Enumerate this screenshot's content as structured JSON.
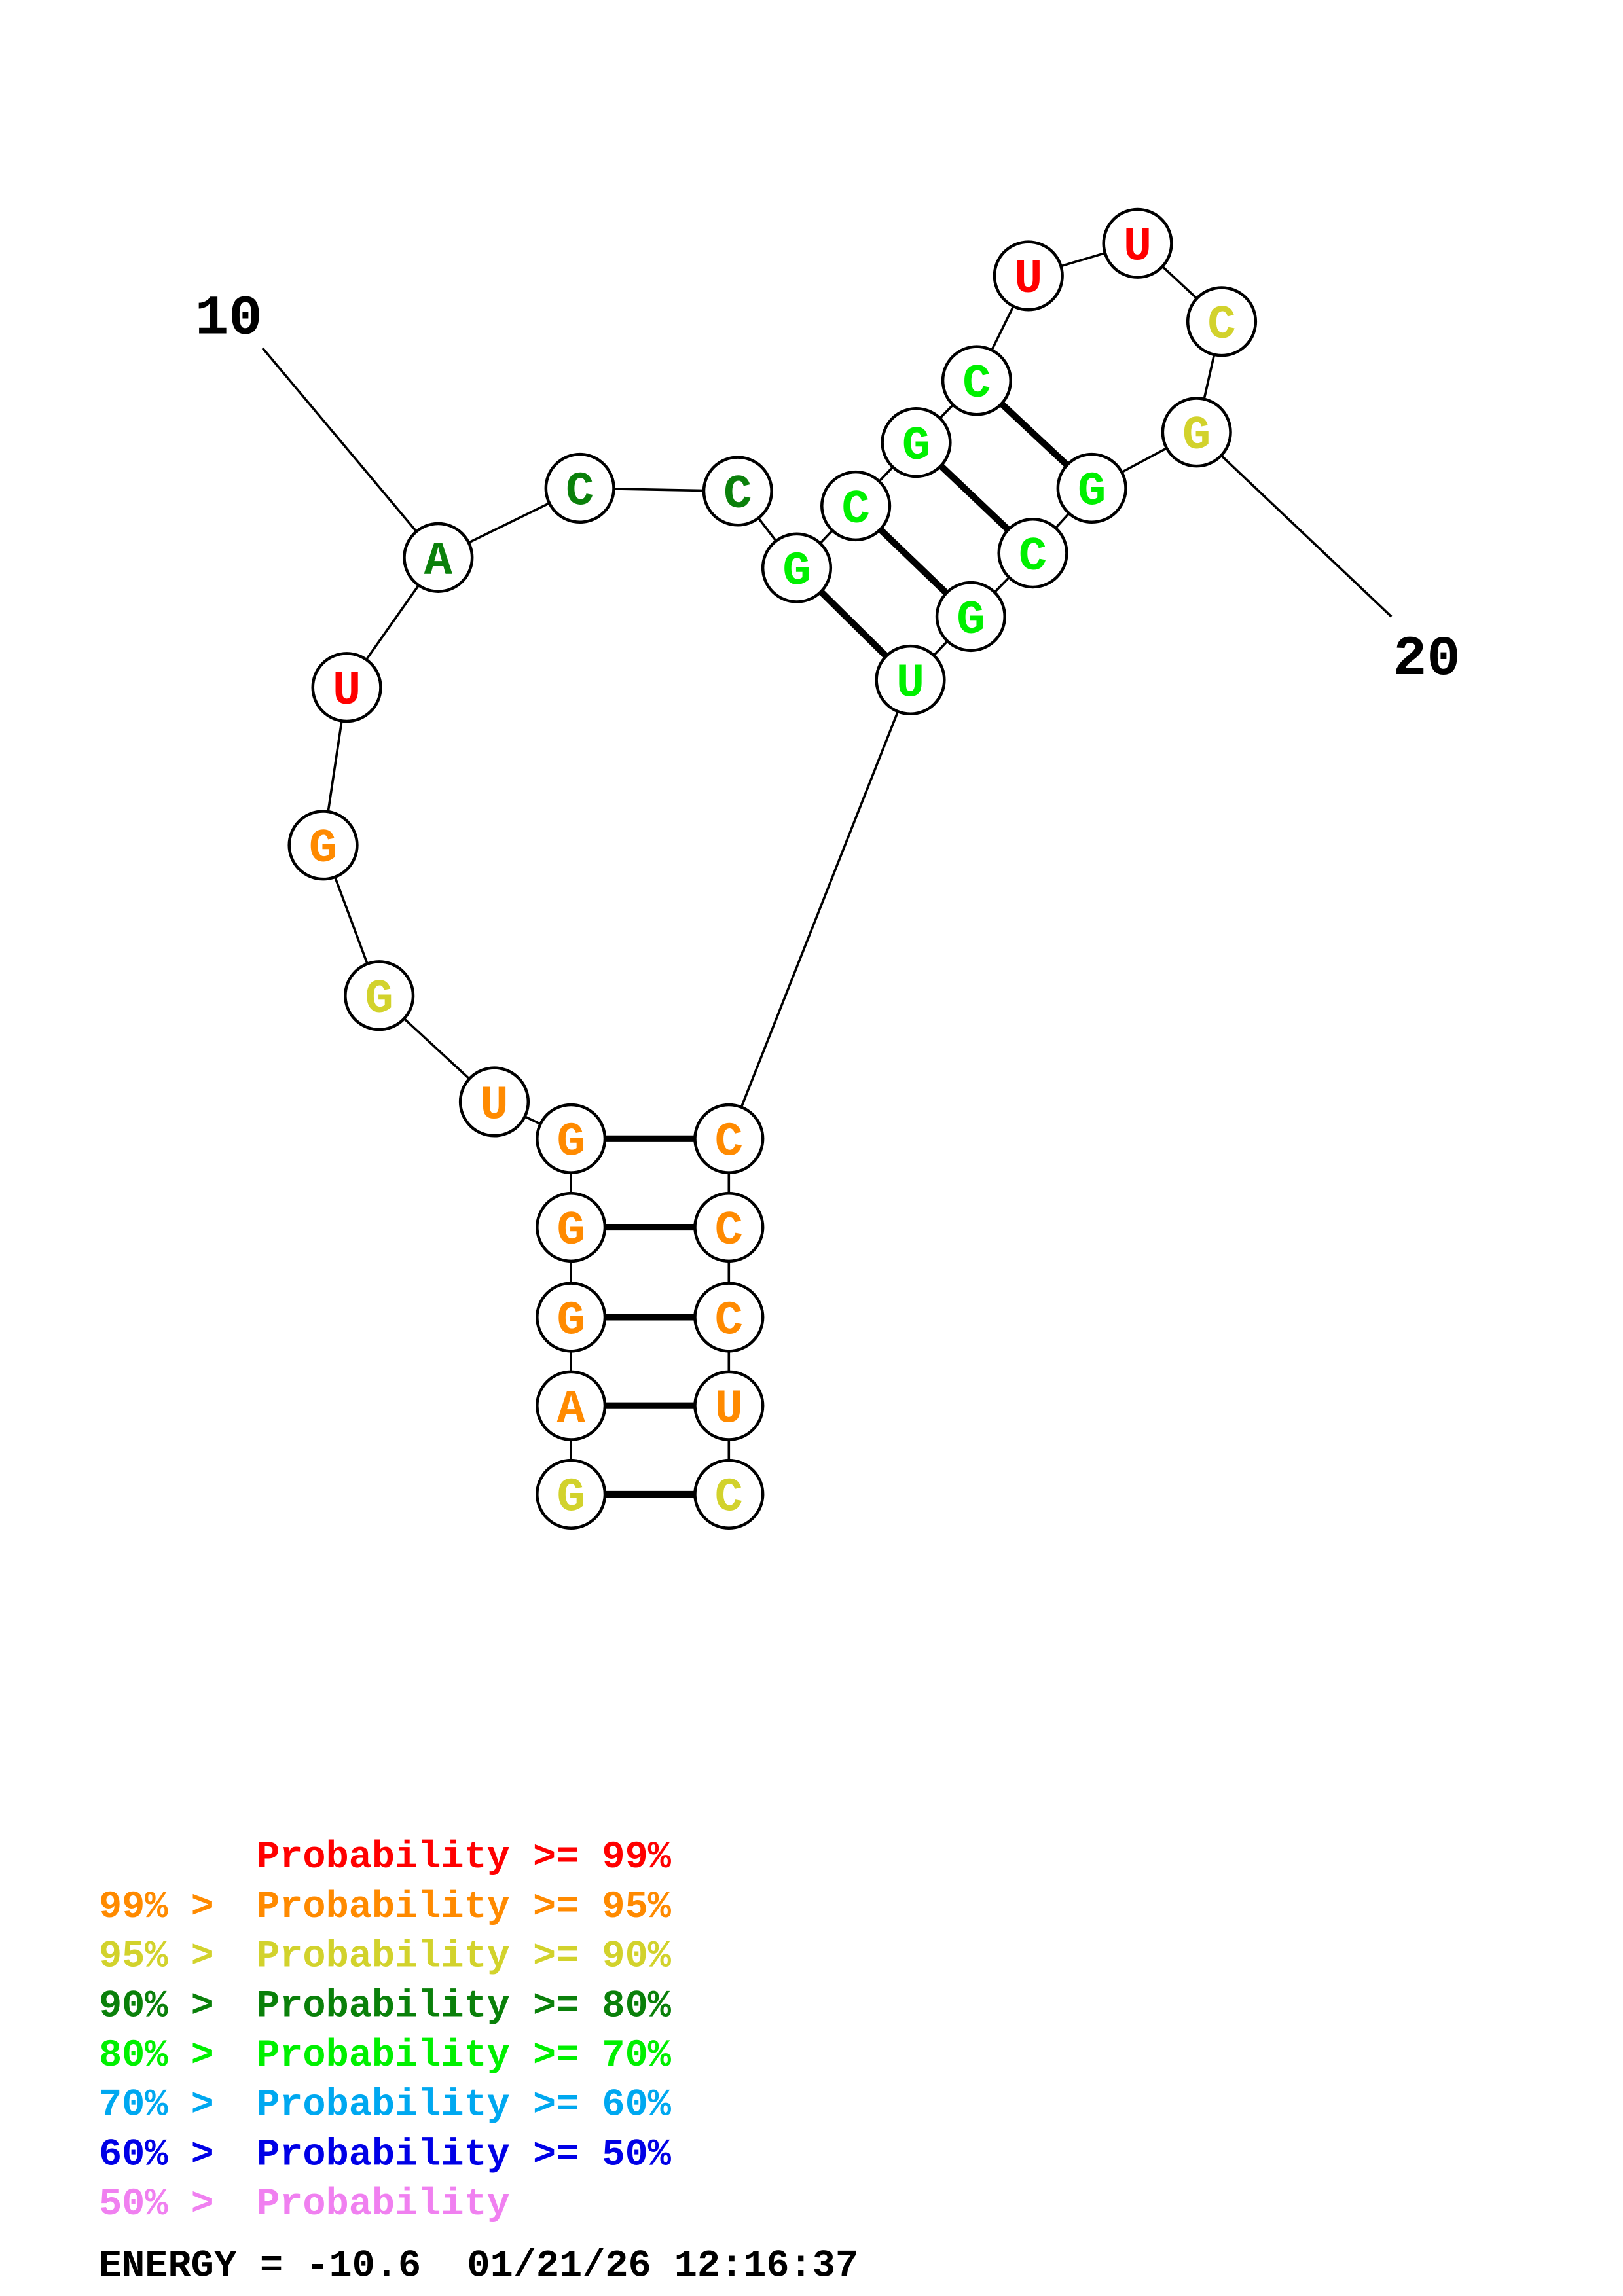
{
  "colors": {
    "p99": "#ff0000",
    "p95": "#ff8a00",
    "p90": "#d2d22c",
    "p80": "#0a800a",
    "p70": "#00f000",
    "p60": "#00a8f0",
    "p50": "#0000e6",
    "plow": "#f080f0"
  },
  "structure": {
    "sequence": [
      {
        "n": 1,
        "base": "G",
        "cls": "p90"
      },
      {
        "n": 2,
        "base": "A",
        "cls": "p95"
      },
      {
        "n": 3,
        "base": "G",
        "cls": "p95"
      },
      {
        "n": 4,
        "base": "G",
        "cls": "p95"
      },
      {
        "n": 5,
        "base": "G",
        "cls": "p95"
      },
      {
        "n": 6,
        "base": "U",
        "cls": "p95"
      },
      {
        "n": 7,
        "base": "G",
        "cls": "p90"
      },
      {
        "n": 8,
        "base": "G",
        "cls": "p95"
      },
      {
        "n": 9,
        "base": "U",
        "cls": "p99"
      },
      {
        "n": 10,
        "base": "A",
        "cls": "p80"
      },
      {
        "n": 11,
        "base": "C",
        "cls": "p80"
      },
      {
        "n": 12,
        "base": "C",
        "cls": "p80"
      },
      {
        "n": 13,
        "base": "G",
        "cls": "p70"
      },
      {
        "n": 14,
        "base": "C",
        "cls": "p70"
      },
      {
        "n": 15,
        "base": "G",
        "cls": "p70"
      },
      {
        "n": 16,
        "base": "C",
        "cls": "p70"
      },
      {
        "n": 17,
        "base": "U",
        "cls": "p99"
      },
      {
        "n": 18,
        "base": "U",
        "cls": "p99"
      },
      {
        "n": 19,
        "base": "C",
        "cls": "p90"
      },
      {
        "n": 20,
        "base": "G",
        "cls": "p90"
      },
      {
        "n": 21,
        "base": "G",
        "cls": "p70"
      },
      {
        "n": 22,
        "base": "C",
        "cls": "p70"
      },
      {
        "n": 23,
        "base": "G",
        "cls": "p70"
      },
      {
        "n": 24,
        "base": "U",
        "cls": "p70"
      },
      {
        "n": 25,
        "base": "C",
        "cls": "p95"
      },
      {
        "n": 26,
        "base": "C",
        "cls": "p95"
      },
      {
        "n": 27,
        "base": "C",
        "cls": "p95"
      },
      {
        "n": 28,
        "base": "U",
        "cls": "p95"
      },
      {
        "n": 29,
        "base": "C",
        "cls": "p90"
      }
    ],
    "pairs": [
      [
        1,
        29
      ],
      [
        2,
        28
      ],
      [
        3,
        27
      ],
      [
        4,
        26
      ],
      [
        5,
        25
      ],
      [
        13,
        24
      ],
      [
        14,
        23
      ],
      [
        15,
        22
      ],
      [
        16,
        21
      ]
    ],
    "position_labels": [
      {
        "n": 10,
        "text": "10"
      },
      {
        "n": 20,
        "text": "20"
      }
    ]
  },
  "legend": [
    {
      "prefix": "",
      "text": "Probability >= 99%",
      "cls": "p99"
    },
    {
      "prefix": "99% > ",
      "text": "Probability >= 95%",
      "cls": "p95"
    },
    {
      "prefix": "95% > ",
      "text": "Probability >= 90%",
      "cls": "p90"
    },
    {
      "prefix": "90% > ",
      "text": "Probability >= 80%",
      "cls": "p80"
    },
    {
      "prefix": "80% > ",
      "text": "Probability >= 70%",
      "cls": "p70"
    },
    {
      "prefix": "70% > ",
      "text": "Probability >= 60%",
      "cls": "p60"
    },
    {
      "prefix": "60% > ",
      "text": "Probability >= 50%",
      "cls": "p50"
    },
    {
      "prefix": "50% > ",
      "text": "Probability",
      "cls": "plow"
    }
  ],
  "footer": {
    "energy": "ENERGY = -10.6  01/21/26 12:16:37"
  }
}
